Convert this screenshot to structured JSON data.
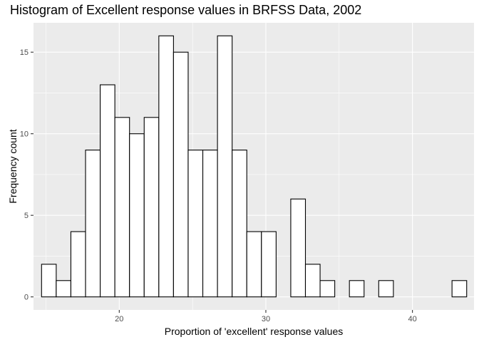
{
  "chart_data": {
    "type": "bar",
    "title": "Histogram of Excellent response values in BRFSS Data, 2002",
    "xlabel": "Proportion of 'excellent' response values",
    "ylabel": "Frequency count",
    "xlim": [
      14.15,
      44.2
    ],
    "ylim": [
      -0.8,
      16.8
    ],
    "x_ticks": [
      20,
      30,
      40
    ],
    "y_ticks": [
      0,
      5,
      10,
      15
    ],
    "grid": true,
    "bin_width": 1.0,
    "bins": [
      {
        "x": 15.2,
        "count": 2
      },
      {
        "x": 16.2,
        "count": 1
      },
      {
        "x": 17.2,
        "count": 4
      },
      {
        "x": 18.2,
        "count": 9
      },
      {
        "x": 19.2,
        "count": 13
      },
      {
        "x": 20.2,
        "count": 11
      },
      {
        "x": 21.2,
        "count": 10
      },
      {
        "x": 22.2,
        "count": 11
      },
      {
        "x": 23.2,
        "count": 16
      },
      {
        "x": 24.2,
        "count": 15
      },
      {
        "x": 25.2,
        "count": 9
      },
      {
        "x": 26.2,
        "count": 9
      },
      {
        "x": 27.2,
        "count": 16
      },
      {
        "x": 28.2,
        "count": 9
      },
      {
        "x": 29.2,
        "count": 4
      },
      {
        "x": 30.2,
        "count": 4
      },
      {
        "x": 31.2,
        "count": 0
      },
      {
        "x": 32.2,
        "count": 6
      },
      {
        "x": 33.2,
        "count": 2
      },
      {
        "x": 34.2,
        "count": 1
      },
      {
        "x": 35.2,
        "count": 0
      },
      {
        "x": 36.2,
        "count": 1
      },
      {
        "x": 37.2,
        "count": 0
      },
      {
        "x": 38.2,
        "count": 1
      },
      {
        "x": 39.2,
        "count": 0
      },
      {
        "x": 40.2,
        "count": 0
      },
      {
        "x": 41.2,
        "count": 0
      },
      {
        "x": 42.2,
        "count": 0
      },
      {
        "x": 43.2,
        "count": 1
      }
    ],
    "colors": {
      "panel_background": "#ebebeb",
      "grid_major": "#ffffff",
      "bar_fill": "#ffffff",
      "bar_stroke": "#000000",
      "tick_text": "#4d4d4d"
    }
  }
}
